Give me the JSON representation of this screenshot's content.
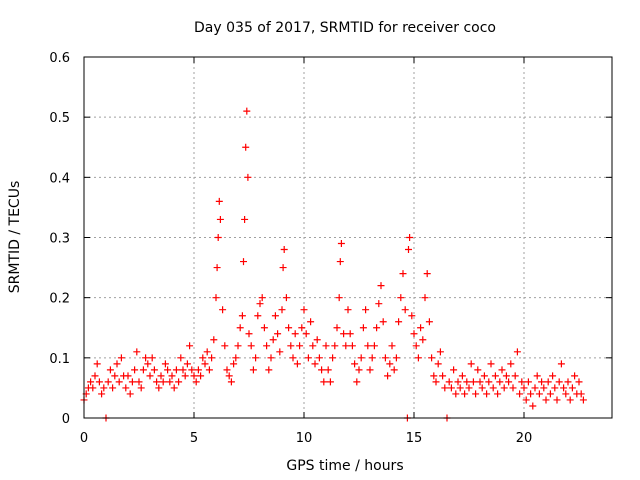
{
  "chart_data": {
    "type": "scatter",
    "title": "Day 035 of 2017, SRMTID for receiver coco",
    "xlabel": "GPS time / hours",
    "ylabel": "SRMTID / TECUs",
    "xlim": [
      0,
      24
    ],
    "ylim": [
      0,
      0.6
    ],
    "xticks": [
      0,
      5,
      10,
      15,
      20
    ],
    "xtick_labels": [
      "0",
      "5",
      "10",
      "15",
      "20"
    ],
    "yticks": [
      0,
      0.1,
      0.2,
      0.3,
      0.4,
      0.5,
      0.6
    ],
    "ytick_labels": [
      "0",
      "0.1",
      "0.2",
      "0.3",
      "0.4",
      "0.5",
      "0.6"
    ],
    "grid": true,
    "marker": "+",
    "color": "#ff0000",
    "series": [
      {
        "name": "SRMTID",
        "points": [
          [
            0.0,
            0.03
          ],
          [
            0.1,
            0.04
          ],
          [
            0.2,
            0.05
          ],
          [
            0.3,
            0.06
          ],
          [
            0.4,
            0.05
          ],
          [
            0.5,
            0.07
          ],
          [
            0.6,
            0.09
          ],
          [
            0.7,
            0.06
          ],
          [
            0.8,
            0.04
          ],
          [
            0.9,
            0.05
          ],
          [
            1.0,
            0.0
          ],
          [
            1.1,
            0.06
          ],
          [
            1.2,
            0.08
          ],
          [
            1.3,
            0.05
          ],
          [
            1.4,
            0.07
          ],
          [
            1.5,
            0.09
          ],
          [
            1.6,
            0.06
          ],
          [
            1.7,
            0.1
          ],
          [
            1.8,
            0.07
          ],
          [
            1.9,
            0.05
          ],
          [
            2.0,
            0.07
          ],
          [
            2.1,
            0.04
          ],
          [
            2.2,
            0.06
          ],
          [
            2.3,
            0.08
          ],
          [
            2.4,
            0.11
          ],
          [
            2.5,
            0.06
          ],
          [
            2.6,
            0.05
          ],
          [
            2.7,
            0.08
          ],
          [
            2.8,
            0.1
          ],
          [
            2.9,
            0.09
          ],
          [
            3.0,
            0.07
          ],
          [
            3.1,
            0.1
          ],
          [
            3.2,
            0.08
          ],
          [
            3.3,
            0.06
          ],
          [
            3.4,
            0.05
          ],
          [
            3.5,
            0.07
          ],
          [
            3.6,
            0.06
          ],
          [
            3.7,
            0.09
          ],
          [
            3.8,
            0.08
          ],
          [
            3.9,
            0.06
          ],
          [
            4.0,
            0.07
          ],
          [
            4.1,
            0.05
          ],
          [
            4.2,
            0.08
          ],
          [
            4.3,
            0.06
          ],
          [
            4.4,
            0.1
          ],
          [
            4.5,
            0.08
          ],
          [
            4.6,
            0.07
          ],
          [
            4.7,
            0.09
          ],
          [
            4.8,
            0.12
          ],
          [
            4.9,
            0.08
          ],
          [
            5.0,
            0.07
          ],
          [
            5.1,
            0.06
          ],
          [
            5.2,
            0.08
          ],
          [
            5.3,
            0.07
          ],
          [
            5.4,
            0.1
          ],
          [
            5.5,
            0.09
          ],
          [
            5.6,
            0.11
          ],
          [
            5.7,
            0.08
          ],
          [
            5.8,
            0.1
          ],
          [
            5.9,
            0.13
          ],
          [
            6.0,
            0.2
          ],
          [
            6.05,
            0.25
          ],
          [
            6.1,
            0.3
          ],
          [
            6.15,
            0.36
          ],
          [
            6.2,
            0.33
          ],
          [
            6.3,
            0.18
          ],
          [
            6.4,
            0.12
          ],
          [
            6.5,
            0.08
          ],
          [
            6.6,
            0.07
          ],
          [
            6.7,
            0.06
          ],
          [
            6.8,
            0.09
          ],
          [
            6.9,
            0.1
          ],
          [
            7.0,
            0.12
          ],
          [
            7.1,
            0.15
          ],
          [
            7.2,
            0.17
          ],
          [
            7.25,
            0.26
          ],
          [
            7.3,
            0.33
          ],
          [
            7.35,
            0.45
          ],
          [
            7.4,
            0.51
          ],
          [
            7.45,
            0.4
          ],
          [
            7.5,
            0.14
          ],
          [
            7.6,
            0.12
          ],
          [
            7.7,
            0.08
          ],
          [
            7.8,
            0.1
          ],
          [
            7.9,
            0.17
          ],
          [
            8.0,
            0.19
          ],
          [
            8.1,
            0.2
          ],
          [
            8.2,
            0.15
          ],
          [
            8.3,
            0.12
          ],
          [
            8.4,
            0.08
          ],
          [
            8.5,
            0.1
          ],
          [
            8.6,
            0.13
          ],
          [
            8.7,
            0.17
          ],
          [
            8.8,
            0.14
          ],
          [
            8.9,
            0.11
          ],
          [
            9.0,
            0.18
          ],
          [
            9.05,
            0.25
          ],
          [
            9.1,
            0.28
          ],
          [
            9.2,
            0.2
          ],
          [
            9.3,
            0.15
          ],
          [
            9.4,
            0.12
          ],
          [
            9.5,
            0.1
          ],
          [
            9.6,
            0.14
          ],
          [
            9.7,
            0.09
          ],
          [
            9.8,
            0.12
          ],
          [
            9.9,
            0.15
          ],
          [
            10.0,
            0.18
          ],
          [
            10.1,
            0.14
          ],
          [
            10.2,
            0.1
          ],
          [
            10.3,
            0.16
          ],
          [
            10.4,
            0.12
          ],
          [
            10.5,
            0.09
          ],
          [
            10.6,
            0.13
          ],
          [
            10.7,
            0.1
          ],
          [
            10.8,
            0.08
          ],
          [
            10.9,
            0.06
          ],
          [
            11.0,
            0.12
          ],
          [
            11.1,
            0.08
          ],
          [
            11.2,
            0.06
          ],
          [
            11.3,
            0.1
          ],
          [
            11.4,
            0.12
          ],
          [
            11.5,
            0.15
          ],
          [
            11.6,
            0.2
          ],
          [
            11.65,
            0.26
          ],
          [
            11.7,
            0.29
          ],
          [
            11.8,
            0.14
          ],
          [
            11.9,
            0.12
          ],
          [
            12.0,
            0.18
          ],
          [
            12.1,
            0.14
          ],
          [
            12.2,
            0.12
          ],
          [
            12.3,
            0.09
          ],
          [
            12.4,
            0.06
          ],
          [
            12.5,
            0.08
          ],
          [
            12.6,
            0.1
          ],
          [
            12.7,
            0.15
          ],
          [
            12.8,
            0.18
          ],
          [
            12.9,
            0.12
          ],
          [
            13.0,
            0.08
          ],
          [
            13.1,
            0.1
          ],
          [
            13.2,
            0.12
          ],
          [
            13.3,
            0.15
          ],
          [
            13.4,
            0.19
          ],
          [
            13.5,
            0.22
          ],
          [
            13.6,
            0.16
          ],
          [
            13.7,
            0.1
          ],
          [
            13.8,
            0.07
          ],
          [
            13.9,
            0.09
          ],
          [
            14.0,
            0.12
          ],
          [
            14.1,
            0.08
          ],
          [
            14.2,
            0.1
          ],
          [
            14.3,
            0.16
          ],
          [
            14.4,
            0.2
          ],
          [
            14.5,
            0.24
          ],
          [
            14.6,
            0.18
          ],
          [
            14.7,
            0.0
          ],
          [
            14.75,
            0.28
          ],
          [
            14.8,
            0.3
          ],
          [
            14.9,
            0.17
          ],
          [
            15.0,
            0.14
          ],
          [
            15.1,
            0.12
          ],
          [
            15.2,
            0.1
          ],
          [
            15.3,
            0.15
          ],
          [
            15.4,
            0.13
          ],
          [
            15.5,
            0.2
          ],
          [
            15.6,
            0.24
          ],
          [
            15.7,
            0.16
          ],
          [
            15.8,
            0.1
          ],
          [
            15.9,
            0.07
          ],
          [
            16.0,
            0.06
          ],
          [
            16.1,
            0.09
          ],
          [
            16.2,
            0.11
          ],
          [
            16.3,
            0.07
          ],
          [
            16.4,
            0.05
          ],
          [
            16.5,
            0.0
          ],
          [
            16.6,
            0.06
          ],
          [
            16.7,
            0.05
          ],
          [
            16.8,
            0.08
          ],
          [
            16.9,
            0.04
          ],
          [
            17.0,
            0.06
          ],
          [
            17.1,
            0.05
          ],
          [
            17.2,
            0.07
          ],
          [
            17.3,
            0.04
          ],
          [
            17.4,
            0.06
          ],
          [
            17.5,
            0.05
          ],
          [
            17.6,
            0.09
          ],
          [
            17.7,
            0.06
          ],
          [
            17.8,
            0.04
          ],
          [
            17.9,
            0.08
          ],
          [
            18.0,
            0.06
          ],
          [
            18.1,
            0.05
          ],
          [
            18.2,
            0.07
          ],
          [
            18.3,
            0.04
          ],
          [
            18.4,
            0.06
          ],
          [
            18.5,
            0.09
          ],
          [
            18.6,
            0.05
          ],
          [
            18.7,
            0.07
          ],
          [
            18.8,
            0.04
          ],
          [
            18.9,
            0.06
          ],
          [
            19.0,
            0.08
          ],
          [
            19.1,
            0.05
          ],
          [
            19.2,
            0.07
          ],
          [
            19.3,
            0.06
          ],
          [
            19.4,
            0.09
          ],
          [
            19.5,
            0.05
          ],
          [
            19.6,
            0.07
          ],
          [
            19.7,
            0.11
          ],
          [
            19.8,
            0.04
          ],
          [
            19.9,
            0.06
          ],
          [
            20.0,
            0.05
          ],
          [
            20.1,
            0.03
          ],
          [
            20.2,
            0.06
          ],
          [
            20.3,
            0.04
          ],
          [
            20.4,
            0.02
          ],
          [
            20.5,
            0.05
          ],
          [
            20.6,
            0.07
          ],
          [
            20.7,
            0.04
          ],
          [
            20.8,
            0.06
          ],
          [
            20.9,
            0.05
          ],
          [
            21.0,
            0.03
          ],
          [
            21.1,
            0.06
          ],
          [
            21.2,
            0.04
          ],
          [
            21.3,
            0.07
          ],
          [
            21.4,
            0.05
          ],
          [
            21.5,
            0.03
          ],
          [
            21.6,
            0.06
          ],
          [
            21.7,
            0.09
          ],
          [
            21.8,
            0.05
          ],
          [
            21.9,
            0.04
          ],
          [
            22.0,
            0.06
          ],
          [
            22.1,
            0.03
          ],
          [
            22.2,
            0.05
          ],
          [
            22.3,
            0.07
          ],
          [
            22.4,
            0.04
          ],
          [
            22.5,
            0.06
          ],
          [
            22.6,
            0.04
          ],
          [
            22.7,
            0.03
          ]
        ]
      }
    ]
  }
}
